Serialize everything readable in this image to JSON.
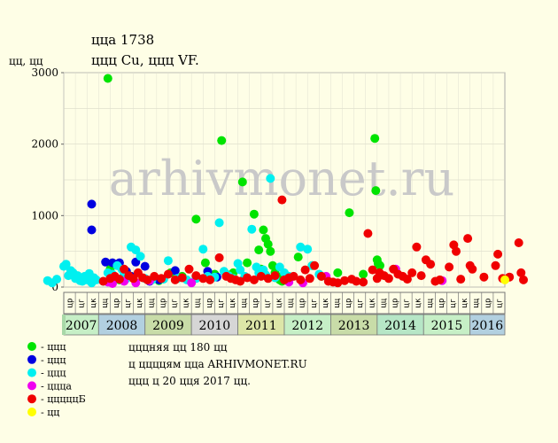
{
  "chart_data": {
    "type": "scatter",
    "title": "ццa 1738",
    "subtitle": "ццц Cu, ццц VF.",
    "ylabel": "цц, цц",
    "ylim": [
      0,
      3000
    ],
    "yticks": [
      0,
      1000,
      2000,
      3000
    ],
    "watermark": "arhivmonet.ru",
    "quarter_labels": [
      "цц",
      "цр",
      "цг",
      "цк"
    ],
    "years": [
      {
        "label": "2007",
        "color": "#c6efc6",
        "q": [
          2,
          3,
          4
        ]
      },
      {
        "label": "2008",
        "color": "#b2d0e0",
        "q": [
          1,
          2,
          3,
          4
        ]
      },
      {
        "label": "2009",
        "color": "#c8dca8",
        "q": [
          1,
          2,
          3,
          4
        ]
      },
      {
        "label": "2010",
        "color": "#d6d6d6",
        "q": [
          1,
          2,
          3,
          4
        ]
      },
      {
        "label": "2011",
        "color": "#dde6a8",
        "q": [
          1,
          2,
          3,
          4
        ]
      },
      {
        "label": "2012",
        "color": "#c6efc6",
        "q": [
          1,
          2,
          3,
          4
        ]
      },
      {
        "label": "2013",
        "color": "#c8dca8",
        "q": [
          1,
          2,
          3,
          4
        ]
      },
      {
        "label": "2014",
        "color": "#b6e6c6",
        "q": [
          1,
          2,
          3,
          4
        ]
      },
      {
        "label": "2015",
        "color": "#c6efc6",
        "q": [
          1,
          2,
          3,
          4
        ]
      },
      {
        "label": "2016",
        "color": "#b2d0e0",
        "q": [
          1,
          2,
          3
        ]
      }
    ],
    "series": [
      {
        "name": "- ццц",
        "color": "#00e400",
        "points": [
          [
            2008.2,
            2920
          ],
          [
            2008.25,
            250
          ],
          [
            2008.45,
            100
          ],
          [
            2008.7,
            150
          ],
          [
            2009.3,
            90
          ],
          [
            2009.55,
            200
          ],
          [
            2009.8,
            150
          ],
          [
            2010.1,
            950
          ],
          [
            2010.3,
            340
          ],
          [
            2010.5,
            180
          ],
          [
            2010.65,
            2050
          ],
          [
            2010.75,
            180
          ],
          [
            2010.9,
            200
          ],
          [
            2011.1,
            1470
          ],
          [
            2011.2,
            340
          ],
          [
            2011.35,
            1020
          ],
          [
            2011.45,
            520
          ],
          [
            2011.5,
            250
          ],
          [
            2011.55,
            800
          ],
          [
            2011.6,
            680
          ],
          [
            2011.65,
            600
          ],
          [
            2011.7,
            500
          ],
          [
            2011.75,
            300
          ],
          [
            2011.8,
            200
          ],
          [
            2011.85,
            150
          ],
          [
            2011.9,
            100
          ],
          [
            2011.95,
            80
          ],
          [
            2012.3,
            420
          ],
          [
            2012.6,
            300
          ],
          [
            2012.8,
            150
          ],
          [
            2013.15,
            200
          ],
          [
            2013.4,
            1040
          ],
          [
            2013.7,
            180
          ],
          [
            2013.95,
            2080
          ],
          [
            2013.97,
            1350
          ],
          [
            2014.0,
            380
          ],
          [
            2014.02,
            330
          ],
          [
            2014.06,
            300
          ]
        ]
      },
      {
        "name": "- ццц",
        "color": "#0000e0",
        "points": [
          [
            2007.85,
            1160
          ],
          [
            2007.85,
            800
          ],
          [
            2008.15,
            350
          ],
          [
            2008.3,
            340
          ],
          [
            2008.45,
            340
          ],
          [
            2008.6,
            220
          ],
          [
            2008.7,
            150
          ],
          [
            2008.8,
            350
          ],
          [
            2009.0,
            290
          ],
          [
            2009.1,
            80
          ],
          [
            2009.3,
            100
          ],
          [
            2009.65,
            230
          ],
          [
            2010.1,
            150
          ],
          [
            2010.35,
            220
          ],
          [
            2010.55,
            140
          ]
        ]
      },
      {
        "name": "- ццц",
        "color": "#00f0f0",
        "points": [
          [
            2006.9,
            90
          ],
          [
            2007.0,
            60
          ],
          [
            2007.1,
            110
          ],
          [
            2007.25,
            290
          ],
          [
            2007.3,
            320
          ],
          [
            2007.35,
            160
          ],
          [
            2007.4,
            230
          ],
          [
            2007.45,
            200
          ],
          [
            2007.5,
            120
          ],
          [
            2007.55,
            160
          ],
          [
            2007.6,
            90
          ],
          [
            2007.65,
            80
          ],
          [
            2007.7,
            150
          ],
          [
            2007.75,
            100
          ],
          [
            2007.8,
            190
          ],
          [
            2007.85,
            60
          ],
          [
            2007.9,
            130
          ],
          [
            2007.95,
            100
          ],
          [
            2008.1,
            80
          ],
          [
            2008.2,
            200
          ],
          [
            2008.3,
            180
          ],
          [
            2008.35,
            120
          ],
          [
            2008.4,
            300
          ],
          [
            2008.5,
            250
          ],
          [
            2008.55,
            180
          ],
          [
            2008.6,
            120
          ],
          [
            2008.7,
            560
          ],
          [
            2008.8,
            520
          ],
          [
            2008.9,
            430
          ],
          [
            2009.0,
            120
          ],
          [
            2009.15,
            100
          ],
          [
            2009.4,
            110
          ],
          [
            2009.5,
            370
          ],
          [
            2009.7,
            120
          ],
          [
            2009.9,
            100
          ],
          [
            2010.1,
            120
          ],
          [
            2010.25,
            530
          ],
          [
            2010.35,
            150
          ],
          [
            2010.5,
            140
          ],
          [
            2010.6,
            900
          ],
          [
            2010.7,
            220
          ],
          [
            2010.8,
            160
          ],
          [
            2010.9,
            120
          ],
          [
            2011.0,
            330
          ],
          [
            2011.05,
            240
          ],
          [
            2011.15,
            150
          ],
          [
            2011.3,
            810
          ],
          [
            2011.4,
            280
          ],
          [
            2011.45,
            200
          ],
          [
            2011.55,
            240
          ],
          [
            2011.6,
            170
          ],
          [
            2011.7,
            1520
          ],
          [
            2011.8,
            130
          ],
          [
            2011.9,
            280
          ],
          [
            2012.0,
            200
          ],
          [
            2012.1,
            150
          ],
          [
            2012.35,
            560
          ],
          [
            2012.5,
            530
          ],
          [
            2012.6,
            300
          ],
          [
            2012.75,
            180
          ]
        ]
      },
      {
        "name": "- цццa",
        "color": "#f000f0",
        "points": [
          [
            2008.2,
            70
          ],
          [
            2008.3,
            50
          ],
          [
            2008.55,
            80
          ],
          [
            2008.8,
            60
          ],
          [
            2009.1,
            90
          ],
          [
            2010.0,
            60
          ],
          [
            2012.1,
            70
          ],
          [
            2012.4,
            60
          ],
          [
            2012.9,
            150
          ],
          [
            2014.4,
            250
          ],
          [
            2015.4,
            90
          ]
        ]
      },
      {
        "name": "- цццццБ",
        "color": "#f00000",
        "points": [
          [
            2008.1,
            80
          ],
          [
            2008.25,
            120
          ],
          [
            2008.35,
            150
          ],
          [
            2008.45,
            110
          ],
          [
            2008.55,
            250
          ],
          [
            2008.65,
            160
          ],
          [
            2008.75,
            120
          ],
          [
            2008.85,
            200
          ],
          [
            2008.95,
            130
          ],
          [
            2009.05,
            100
          ],
          [
            2009.2,
            150
          ],
          [
            2009.35,
            120
          ],
          [
            2009.5,
            180
          ],
          [
            2009.65,
            100
          ],
          [
            2009.8,
            130
          ],
          [
            2009.95,
            250
          ],
          [
            2010.1,
            160
          ],
          [
            2010.25,
            120
          ],
          [
            2010.4,
            100
          ],
          [
            2010.6,
            410
          ],
          [
            2010.75,
            150
          ],
          [
            2010.85,
            120
          ],
          [
            2010.95,
            100
          ],
          [
            2011.05,
            80
          ],
          [
            2011.2,
            130
          ],
          [
            2011.35,
            100
          ],
          [
            2011.5,
            150
          ],
          [
            2011.65,
            120
          ],
          [
            2011.8,
            160
          ],
          [
            2011.95,
            1220
          ],
          [
            2012.0,
            100
          ],
          [
            2012.1,
            130
          ],
          [
            2012.2,
            150
          ],
          [
            2012.35,
            100
          ],
          [
            2012.45,
            240
          ],
          [
            2012.55,
            120
          ],
          [
            2012.65,
            300
          ],
          [
            2012.8,
            150
          ],
          [
            2012.95,
            80
          ],
          [
            2013.05,
            70
          ],
          [
            2013.15,
            60
          ],
          [
            2013.3,
            90
          ],
          [
            2013.45,
            110
          ],
          [
            2013.55,
            80
          ],
          [
            2013.7,
            70
          ],
          [
            2013.8,
            750
          ],
          [
            2013.9,
            240
          ],
          [
            2014.0,
            120
          ],
          [
            2014.05,
            200
          ],
          [
            2014.15,
            160
          ],
          [
            2014.25,
            120
          ],
          [
            2014.35,
            250
          ],
          [
            2014.45,
            180
          ],
          [
            2014.55,
            150
          ],
          [
            2014.65,
            110
          ],
          [
            2014.75,
            200
          ],
          [
            2014.85,
            560
          ],
          [
            2014.95,
            160
          ],
          [
            2015.05,
            380
          ],
          [
            2015.15,
            320
          ],
          [
            2015.25,
            80
          ],
          [
            2015.35,
            100
          ],
          [
            2015.55,
            280
          ],
          [
            2015.65,
            590
          ],
          [
            2015.7,
            500
          ],
          [
            2015.8,
            110
          ],
          [
            2015.95,
            680
          ],
          [
            2016.0,
            300
          ],
          [
            2016.05,
            250
          ],
          [
            2016.3,
            140
          ],
          [
            2016.55,
            300
          ],
          [
            2016.6,
            460
          ],
          [
            2016.7,
            120
          ],
          [
            2016.85,
            140
          ],
          [
            2017.05,
            620
          ],
          [
            2017.1,
            200
          ],
          [
            2017.15,
            100
          ]
        ]
      },
      {
        "name": "- цц",
        "color": "#ffff00",
        "points": [
          [
            2016.75,
            100
          ]
        ]
      }
    ]
  },
  "footer": {
    "line1": "цццняя цц 180 цц",
    "line2": "ц ццццям ццa ARHIVMONET.RU",
    "line3": "ццц ц 20 цця 2017 цц."
  }
}
